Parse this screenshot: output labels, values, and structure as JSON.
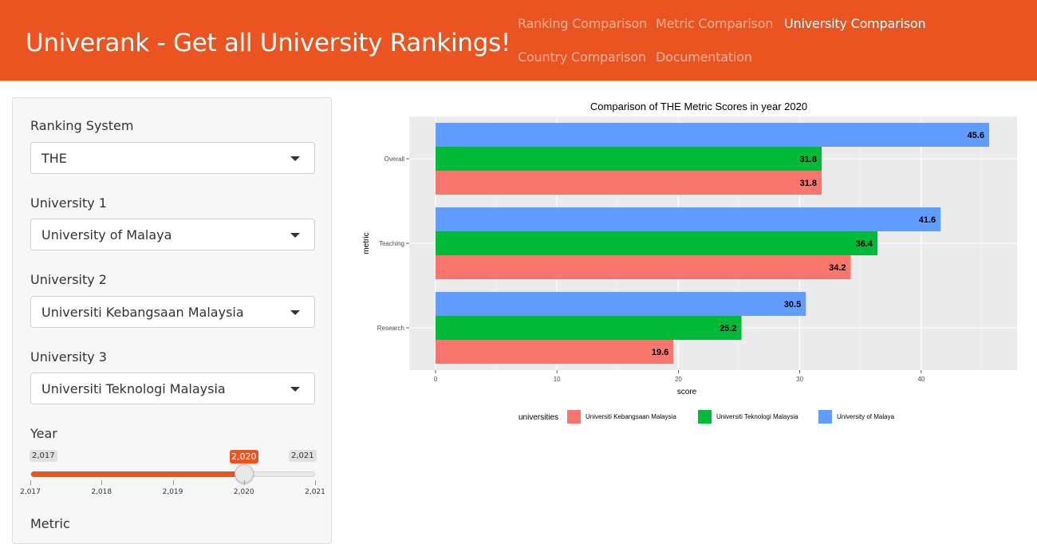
{
  "header": {
    "brand": "Univerank - Get all University Rankings!",
    "nav": [
      {
        "label": "Ranking Comparison",
        "active": false
      },
      {
        "label": "Metric Comparison",
        "active": false
      },
      {
        "label": "University Comparison",
        "active": true
      },
      {
        "label": "Country Comparison",
        "active": false
      },
      {
        "label": "Documentation",
        "active": false
      }
    ]
  },
  "sidebar": {
    "ranking_system": {
      "label": "Ranking System",
      "value": "THE"
    },
    "university1": {
      "label": "University 1",
      "value": "University of Malaya"
    },
    "university2": {
      "label": "University 2",
      "value": "Universiti Kebangsaan Malaysia"
    },
    "university3": {
      "label": "University 3",
      "value": "Universiti Teknologi Malaysia"
    },
    "year": {
      "label": "Year",
      "min_label": "2,017",
      "max_label": "2,021",
      "current_label": "2,020",
      "min": 2017,
      "max": 2021,
      "value": 2020,
      "ticks": [
        "2,017",
        "2,018",
        "2,019",
        "2,020",
        "2,021"
      ]
    },
    "next_label": "Metric"
  },
  "colors": {
    "brand": "#e95420",
    "kebangsaan": "#f8766d",
    "teknologi": "#00ba38",
    "malaya": "#619cff"
  },
  "chart_data": {
    "type": "bar",
    "orientation": "horizontal",
    "title": "Comparison of THE Metric Scores in year 2020",
    "xlabel": "score",
    "ylabel": "metric",
    "categories": [
      "Overall",
      "Teaching",
      "Research"
    ],
    "series": [
      {
        "name": "Universiti Kebangsaan Malaysia",
        "values": [
          31.8,
          34.2,
          19.6
        ]
      },
      {
        "name": "Universiti Teknologi Malaysia",
        "values": [
          31.8,
          36.4,
          25.2
        ]
      },
      {
        "name": "University of Malaya",
        "values": [
          45.6,
          41.6,
          30.5
        ]
      }
    ],
    "xlim": [
      0,
      48
    ],
    "xticks": [
      0,
      10,
      20,
      30,
      40
    ],
    "grid": true,
    "legend_title": "universities",
    "legend_position": "bottom"
  }
}
